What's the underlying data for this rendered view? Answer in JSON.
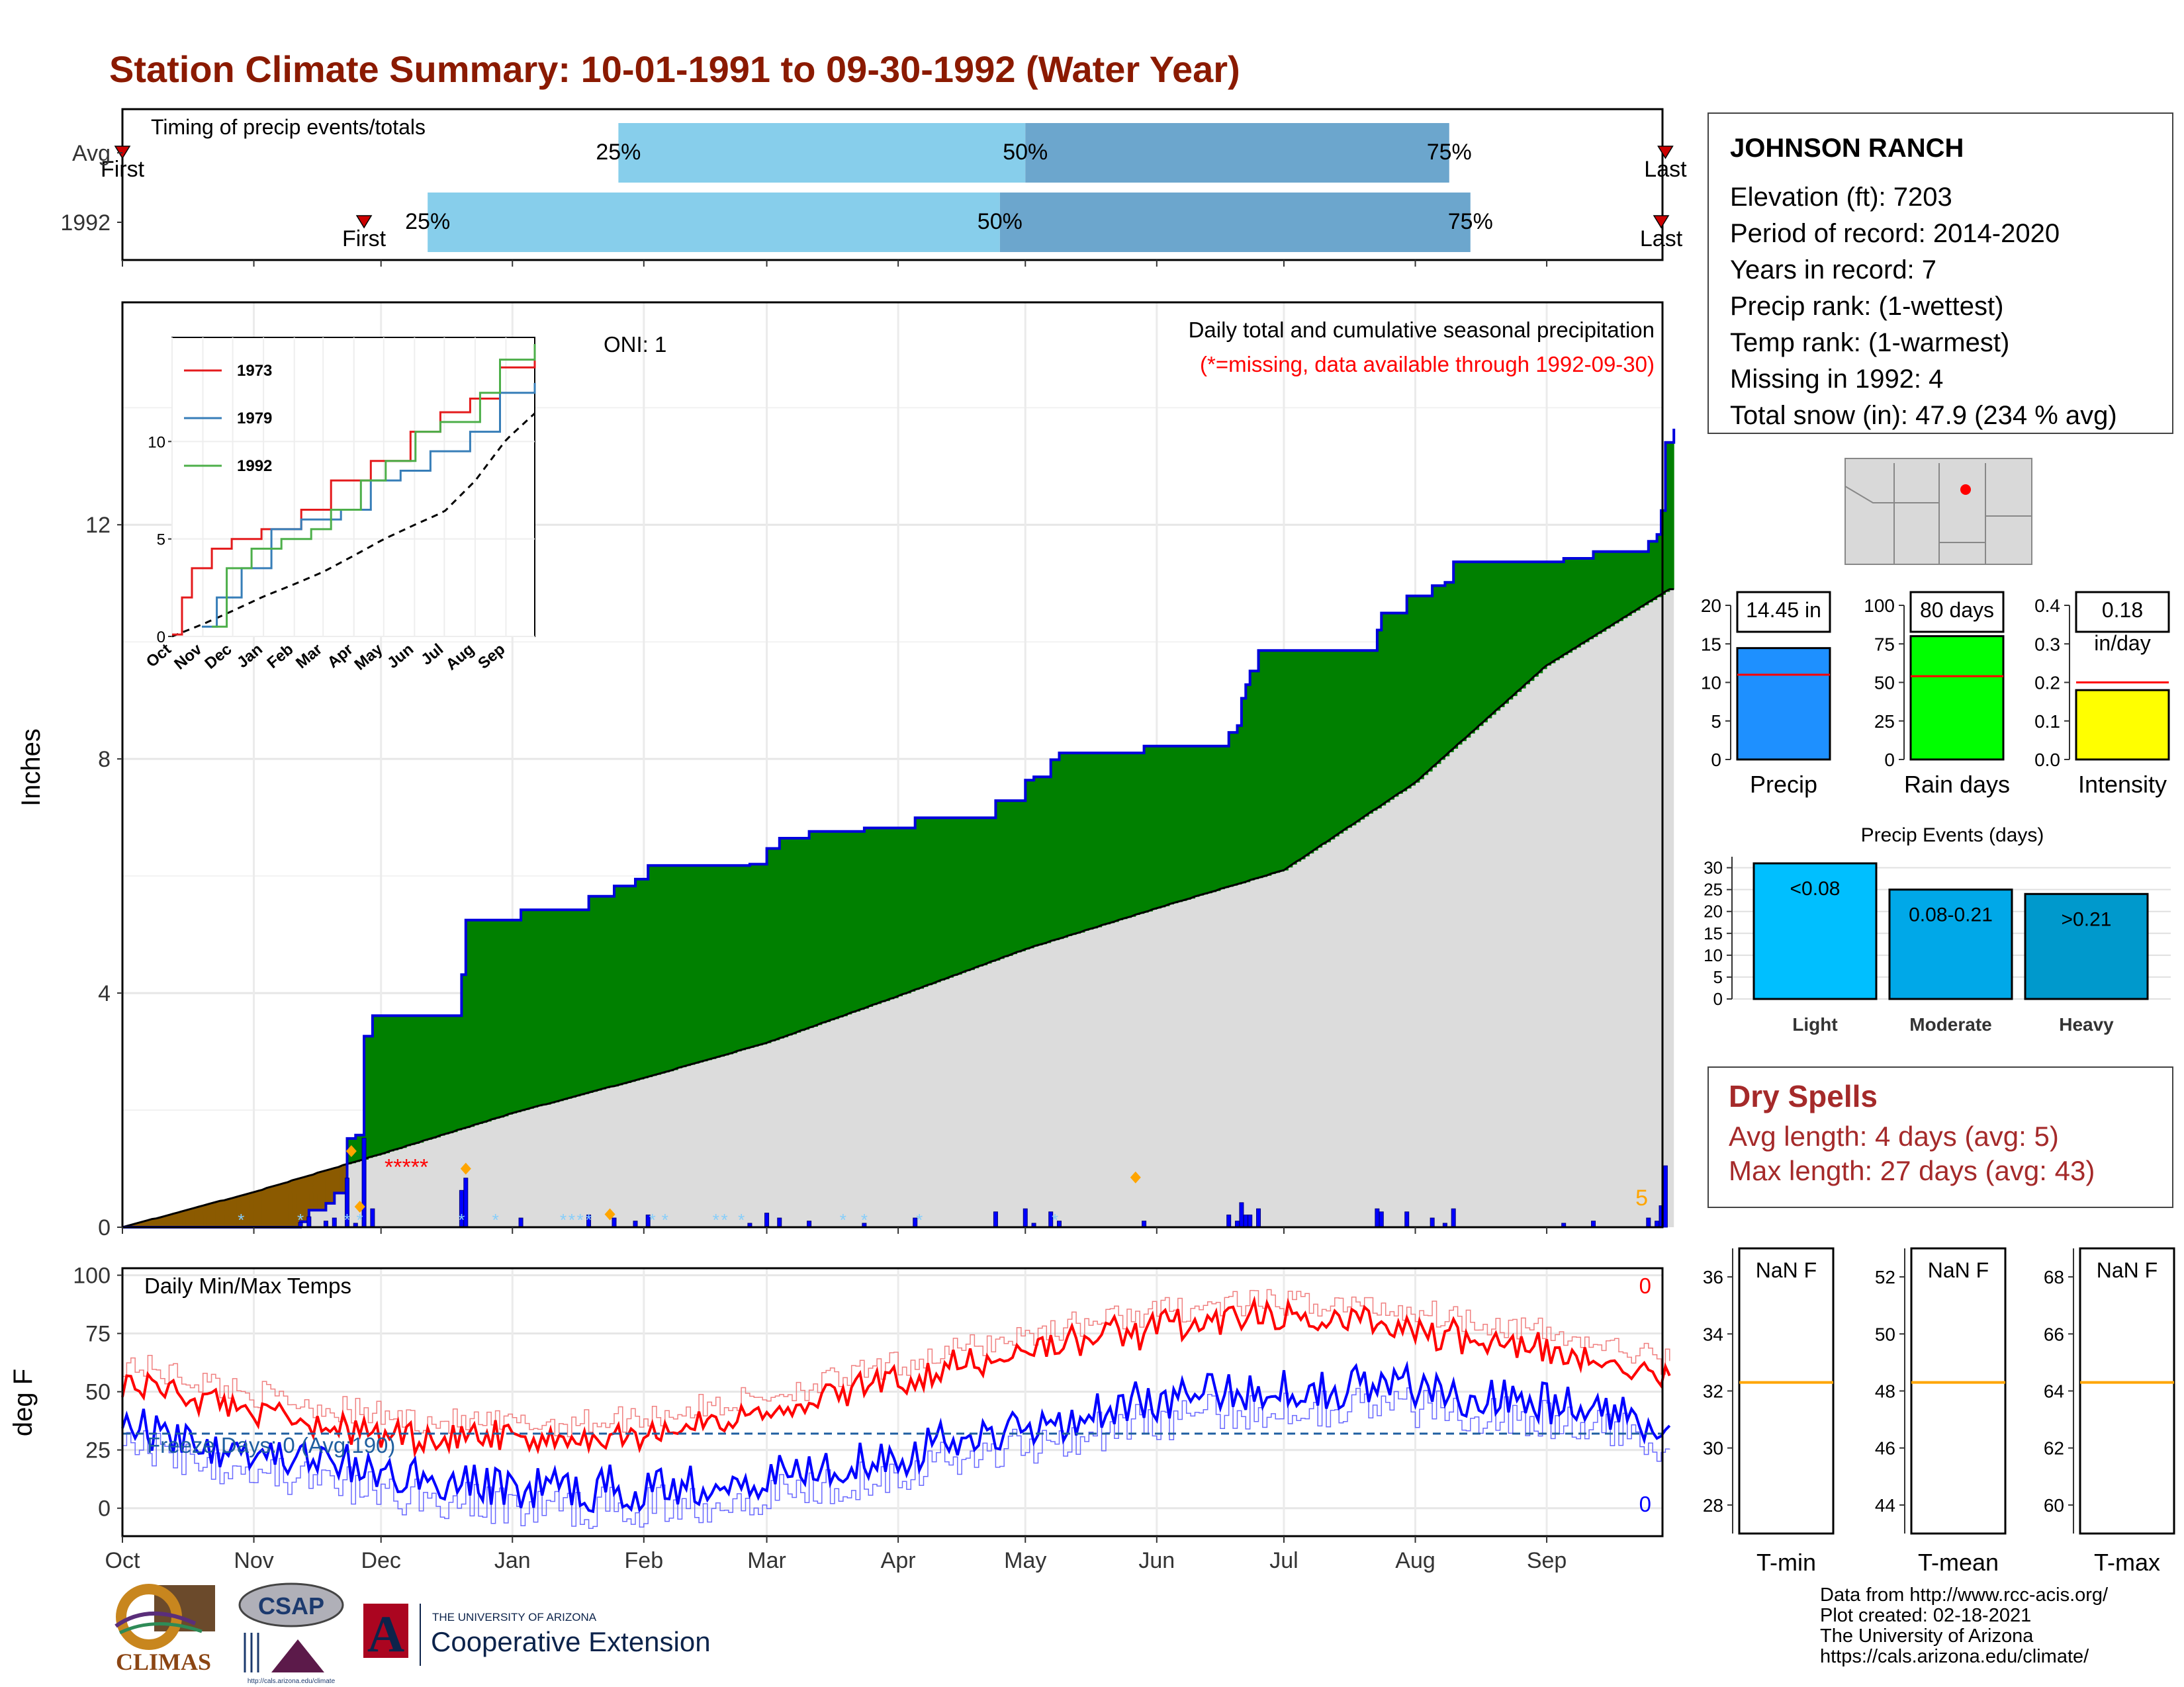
{
  "title": "Station Climate Summary: 10-01-1991 to 09-30-1992 (Water Year)",
  "timing_panel": {
    "label": "Timing of precip events/totals",
    "rows": [
      {
        "name": "Avg",
        "first_label": "First",
        "last_label": "Last",
        "first_date": "1991-10-01",
        "last_date": "1992-09-29",
        "p25_label": "25%",
        "p50_label": "50%",
        "p75_label": "75%",
        "p25": "1992-01-26",
        "p50": "1992-05-01",
        "p75": "1992-08-09"
      },
      {
        "name": "1992",
        "first_label": "First",
        "last_label": "Last",
        "first_date": "1991-11-27",
        "last_date": "1992-09-28",
        "p25_label": "25%",
        "p50_label": "50%",
        "p75_label": "75%",
        "p25": "1991-12-12",
        "p50": "1992-04-25",
        "p75": "1992-08-14"
      }
    ],
    "colors": {
      "light": "#87CEEB",
      "dark": "#6CA6CD",
      "marker": "#CC0000"
    }
  },
  "precip_panel": {
    "annotation": "Daily total and cumulative seasonal precipitation",
    "missing_note": "(*=missing, data available through 1992-09-30)",
    "oni": "ONI: 1",
    "ylabel": "Inches",
    "yticks": [
      "0",
      "4",
      "8",
      "12"
    ],
    "ylim": [
      0,
      15.8
    ],
    "day_count_label": "5",
    "colors": {
      "above": "#008000",
      "below_fill": "#8B5A00",
      "normal": "#DCDCDC",
      "line": "#0000DD",
      "daily": "#0000FF",
      "snow": "#87CEFA",
      "snow_marker": "#FFA500",
      "missing": "#FF0000"
    },
    "missing_markers": "*****"
  },
  "inset": {
    "yticks": [
      "0",
      "5",
      "10"
    ],
    "months": [
      "Oct",
      "Nov",
      "Dec",
      "Jan",
      "Feb",
      "Mar",
      "Apr",
      "May",
      "Jun",
      "Jul",
      "Aug",
      "Sep"
    ],
    "legend": [
      {
        "name": "1973",
        "color": "#E41A1C"
      },
      {
        "name": "1979",
        "color": "#377EB8"
      },
      {
        "name": "1992",
        "color": "#4DAF4A"
      }
    ]
  },
  "temp_panel": {
    "label": "Daily Min/Max Temps",
    "ylabel": "deg F",
    "yticks": [
      "0",
      "25",
      "50",
      "75",
      "100"
    ],
    "ylim": [
      -12,
      103
    ],
    "freeze_text": "Freeze Days: 0 (Avg:190)",
    "max_count": "0",
    "min_count": "0",
    "freeze_line": 32,
    "colors": {
      "max": "#FF0000",
      "max_avg": "#F08080",
      "min": "#0000FF",
      "min_avg": "#6A6AFF",
      "freeze": "#1F5FA0"
    }
  },
  "months": [
    "Oct",
    "Nov",
    "Dec",
    "Jan",
    "Feb",
    "Mar",
    "Apr",
    "May",
    "Jun",
    "Jul",
    "Aug",
    "Sep"
  ],
  "station": {
    "name": "JOHNSON RANCH",
    "lines": [
      "Elevation (ft): 7203",
      "Period of record: 2014-2020",
      "Years in record: 7",
      "Precip rank:  (1-wettest)",
      "Temp rank:  (1-warmest)",
      "Missing in 1992: 4",
      "Total snow (in): 47.9 (234 % avg)"
    ]
  },
  "summary_bars": [
    {
      "name": "Precip",
      "value": 14.45,
      "label": "14.45 in",
      "avg": 11,
      "ymax": 20,
      "ticks": [
        "0",
        "5",
        "10",
        "15",
        "20"
      ],
      "color": "#1E90FF"
    },
    {
      "name": "Rain days",
      "value": 80,
      "label": "80 days",
      "avg": 54,
      "ymax": 100,
      "ticks": [
        "0",
        "25",
        "50",
        "75",
        "100"
      ],
      "color": "#00FF00"
    },
    {
      "name": "Intensity",
      "value": 0.18,
      "label": "0.18\nin/day",
      "avg": 0.2,
      "ymax": 0.4,
      "ticks": [
        "0.0",
        "0.1",
        "0.2",
        "0.3",
        "0.4"
      ],
      "color": "#FFFF00"
    }
  ],
  "precip_events": {
    "title": "Precip Events (days)",
    "categories": [
      "Light",
      "Moderate",
      "Heavy"
    ],
    "labels": [
      "<0.08",
      "0.08-0.21",
      ">0.21"
    ],
    "values": [
      31,
      25,
      24
    ],
    "ymax": 30,
    "ticks": [
      "0",
      "5",
      "10",
      "15",
      "20",
      "25",
      "30"
    ],
    "colors": [
      "#00BFFF",
      "#00A8E8",
      "#0099CC"
    ]
  },
  "dry_spells": {
    "title": "Dry Spells",
    "avg_line": "Avg length: 4 days (avg: 5)",
    "max_line": "Max length: 27 days (avg: 43)"
  },
  "temp_boxes": [
    {
      "name": "T-min",
      "label": "NaN F",
      "ticks": [
        "28",
        "30",
        "32",
        "34",
        "36"
      ],
      "tmin": 27,
      "tmax": 37,
      "line": 32.3
    },
    {
      "name": "T-mean",
      "label": "NaN F",
      "ticks": [
        "44",
        "46",
        "48",
        "50",
        "52"
      ],
      "tmin": 43,
      "tmax": 53,
      "line": 48.3
    },
    {
      "name": "T-max",
      "label": "NaN F",
      "ticks": [
        "60",
        "62",
        "64",
        "66",
        "68"
      ],
      "tmin": 59,
      "tmax": 69,
      "line": 64.3
    }
  ],
  "credits": [
    "Data from http://www.rcc-acis.org/",
    "Plot created: 02-18-2021",
    "The University of Arizona",
    "https://cals.arizona.edu/climate/"
  ],
  "logos": {
    "climas": "CLIMAS",
    "csap": "CSAP",
    "csap_url": "http://cals.arizona.edu/climate",
    "ua_small": "THE UNIVERSITY OF ARIZONA",
    "ua_big": "Cooperative Extension",
    "ua_letter": "A"
  }
}
